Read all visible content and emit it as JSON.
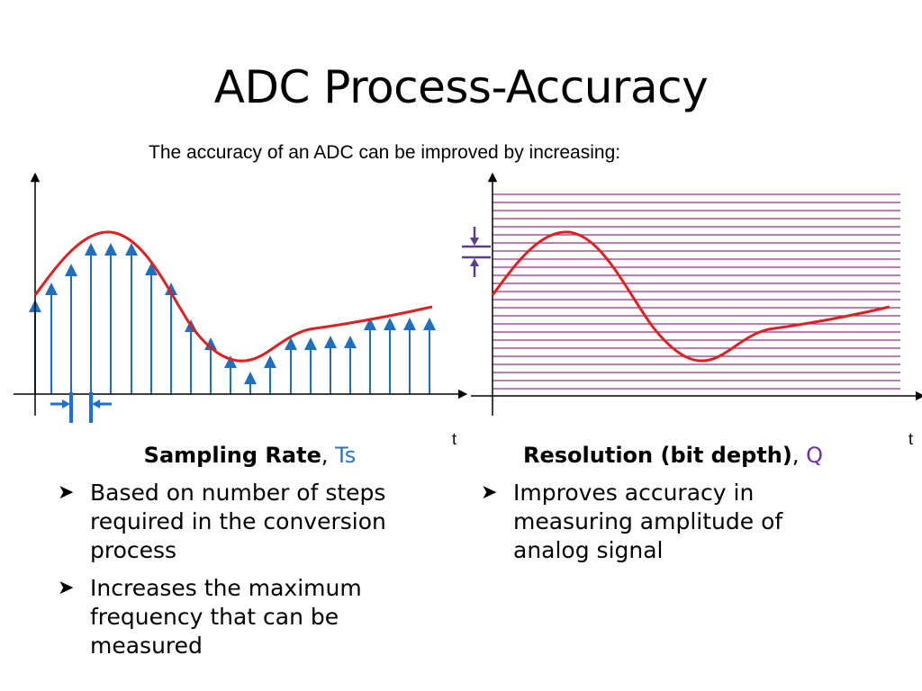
{
  "slide": {
    "title": "ADC Process-Accuracy",
    "subtitle": "The accuracy of an ADC can be improved by increasing:"
  },
  "left_panel": {
    "axis_label": "t",
    "heading_bold": "Sampling Rate",
    "heading_sep": ", ",
    "heading_symbol": "Ts",
    "bullets": [
      "Based on number of steps required in the conversion process",
      "Increases the maximum frequency that can be measured"
    ]
  },
  "right_panel": {
    "axis_label": "t",
    "heading_bold": "Resolution (bit depth)",
    "heading_sep": ", ",
    "heading_symbol": "Q",
    "bullets": [
      "Improves accuracy in measuring amplitude of analog signal"
    ]
  },
  "colors": {
    "signal": "#e02020",
    "sample_arrow": "#1f6fbf",
    "interval_marker": "#1f6fd0",
    "quant_line": "#9b2d8f",
    "quant_marker": "#5c3c8c",
    "axis": "#000000"
  },
  "icons": {
    "bullet": "arrowhead-bullet-icon"
  }
}
